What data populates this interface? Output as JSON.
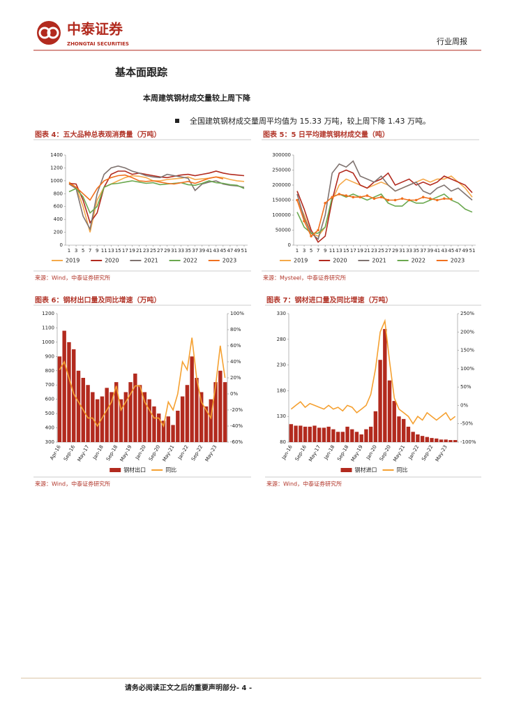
{
  "header": {
    "company": "中泰证券",
    "company_en": "ZHONGTAI SECURITIES",
    "report_type": "行业周报"
  },
  "section_title": "基本面跟踪",
  "subtitle": "本周建筑钢材成交量较上周下降",
  "bullet": "全国建筑钢材成交量周平均值为 15.33 万吨，较上周下降 1.43 万吨。",
  "chart_data": [
    {
      "type": "line",
      "title": "图表 4：五大品种总表观消费量（万吨）",
      "source": "来源：Wind，中泰证券研究所",
      "x": [
        1,
        3,
        5,
        7,
        9,
        11,
        13,
        15,
        17,
        19,
        21,
        23,
        25,
        27,
        29,
        31,
        33,
        35,
        37,
        39,
        41,
        43,
        45,
        47,
        49,
        51
      ],
      "xlim": [
        0,
        52
      ],
      "xticks": [
        1,
        3,
        5,
        7,
        9,
        11,
        13,
        15,
        17,
        19,
        21,
        23,
        25,
        27,
        29,
        31,
        33,
        35,
        37,
        39,
        41,
        43,
        45,
        47,
        49,
        51
      ],
      "ylim": [
        0,
        1400
      ],
      "yticks": [
        0,
        200,
        400,
        600,
        800,
        1000,
        1200,
        1400
      ],
      "grid": false,
      "legend": "bottom",
      "series": [
        {
          "name": "2019",
          "color": "#f5a94a",
          "values": [
            980,
            900,
            600,
            200,
            700,
            900,
            950,
            1000,
            1050,
            1080,
            1070,
            1050,
            1000,
            1000,
            1020,
            1030,
            1040,
            1060,
            1020,
            1030,
            1040,
            1060,
            1050,
            1020,
            1000,
            990
          ]
        },
        {
          "name": "2020",
          "color": "#b22a1e",
          "values": [
            960,
            950,
            700,
            350,
            500,
            900,
            1100,
            1150,
            1150,
            1100,
            1120,
            1100,
            1080,
            1060,
            1050,
            1070,
            1090,
            1100,
            1080,
            1100,
            1120,
            1150,
            1120,
            1100,
            1090,
            1080
          ]
        },
        {
          "name": "2021",
          "color": "#7f7370",
          "values": [
            950,
            880,
            450,
            250,
            800,
            1100,
            1200,
            1230,
            1200,
            1150,
            1120,
            1080,
            1060,
            1050,
            1100,
            1080,
            1060,
            1040,
            850,
            950,
            980,
            1000,
            950,
            930,
            920,
            900
          ]
        },
        {
          "name": "2022",
          "color": "#6aa84f",
          "values": [
            830,
            880,
            750,
            500,
            600,
            900,
            950,
            960,
            980,
            1000,
            980,
            960,
            970,
            940,
            950,
            960,
            970,
            940,
            930,
            960,
            1000,
            970,
            960,
            940,
            930,
            880
          ]
        },
        {
          "name": "2023",
          "color": "#f0701e",
          "values": [
            960,
            900,
            800,
            700,
            880,
            1000,
            1050,
            1080,
            1090,
            1050,
            1000,
            990,
            1000,
            980,
            960,
            950,
            970,
            990,
            960,
            1000,
            1040,
            1060,
            1030,
            null,
            null,
            null
          ]
        }
      ]
    },
    {
      "type": "line",
      "title": "图表 5：5 日平均建筑钢材成交量（吨）",
      "source": "来源：Mysteel，中泰证券研究所",
      "x": [
        1,
        3,
        5,
        7,
        9,
        11,
        13,
        15,
        17,
        19,
        21,
        23,
        25,
        27,
        29,
        31,
        33,
        35,
        37,
        39,
        41,
        43,
        45,
        47,
        49,
        51
      ],
      "xlim": [
        0,
        52
      ],
      "xticks": [
        1,
        3,
        5,
        7,
        9,
        11,
        13,
        15,
        17,
        19,
        21,
        23,
        25,
        27,
        29,
        31,
        33,
        35,
        37,
        39,
        41,
        43,
        45,
        47,
        49,
        51
      ],
      "ylim": [
        0,
        300000
      ],
      "yticks": [
        0,
        50000,
        100000,
        150000,
        200000,
        250000,
        300000
      ],
      "grid": false,
      "legend": "bottom",
      "series": [
        {
          "name": "2019",
          "color": "#f5a94a",
          "values": [
            150000,
            100000,
            40000,
            30000,
            60000,
            150000,
            200000,
            220000,
            210000,
            200000,
            190000,
            200000,
            210000,
            200000,
            180000,
            190000,
            200000,
            210000,
            220000,
            210000,
            220000,
            220000,
            230000,
            210000,
            190000,
            160000
          ]
        },
        {
          "name": "2020",
          "color": "#b22a1e",
          "values": [
            180000,
            120000,
            50000,
            10000,
            30000,
            150000,
            240000,
            250000,
            240000,
            200000,
            190000,
            210000,
            220000,
            240000,
            200000,
            210000,
            220000,
            200000,
            210000,
            200000,
            210000,
            230000,
            220000,
            210000,
            200000,
            175000
          ]
        },
        {
          "name": "2021",
          "color": "#7f7370",
          "values": [
            170000,
            90000,
            40000,
            20000,
            100000,
            240000,
            270000,
            260000,
            280000,
            230000,
            220000,
            210000,
            230000,
            200000,
            180000,
            190000,
            200000,
            210000,
            180000,
            170000,
            190000,
            200000,
            180000,
            190000,
            170000,
            150000
          ]
        },
        {
          "name": "2022",
          "color": "#6aa84f",
          "values": [
            110000,
            60000,
            40000,
            40000,
            60000,
            160000,
            170000,
            160000,
            170000,
            160000,
            150000,
            160000,
            170000,
            140000,
            130000,
            130000,
            150000,
            140000,
            140000,
            150000,
            160000,
            170000,
            150000,
            140000,
            120000,
            110000
          ]
        },
        {
          "name": "2023",
          "color": "#f0701e",
          "markers": true,
          "values": [
            150000,
            80000,
            30000,
            50000,
            140000,
            160000,
            170000,
            165000,
            160000,
            160000,
            165000,
            155000,
            160000,
            150000,
            150000,
            155000,
            150000,
            150000,
            160000,
            155000,
            150000,
            155000,
            153300,
            null,
            null,
            null
          ]
        }
      ]
    },
    {
      "type": "combo",
      "title": "图表 6：钢材出口量及同比增速（万吨）",
      "source": "来源：Wind，中泰证券研究所",
      "categories": [
        "Apr-16",
        null,
        null,
        "Sep-16",
        null,
        null,
        "May-17",
        null,
        null,
        "Jan-18",
        null,
        null,
        "Sep-18",
        null,
        null,
        "May-19",
        null,
        null,
        "Jan-20",
        null,
        null,
        "Sep-20",
        null,
        null,
        "May-21",
        null,
        null,
        "Jan-22",
        null,
        null,
        "Sep-22",
        null,
        null,
        "May-23",
        null,
        null
      ],
      "ylim": [
        300,
        1200
      ],
      "yticks": [
        300,
        400,
        500,
        600,
        700,
        800,
        900,
        1000,
        1100,
        1200
      ],
      "y2lim": [
        -60,
        100
      ],
      "y2ticks": [
        {
          "value": -60,
          "label": "-60%"
        },
        {
          "value": -40,
          "label": "-40%"
        },
        {
          "value": -20,
          "label": "-20%"
        },
        {
          "value": 0,
          "label": "0%"
        },
        {
          "value": 20,
          "label": "20%"
        },
        {
          "value": 40,
          "label": "40%"
        },
        {
          "value": 60,
          "label": "60%"
        },
        {
          "value": 80,
          "label": "80%"
        },
        {
          "value": 100,
          "label": "100%"
        }
      ],
      "legend": "bottom",
      "series": [
        {
          "name": "钢材出口",
          "kind": "bar",
          "color": "#b22a1e",
          "values": [
            900,
            1080,
            1000,
            950,
            800,
            750,
            700,
            650,
            600,
            620,
            680,
            650,
            720,
            600,
            650,
            720,
            780,
            700,
            650,
            600,
            550,
            500,
            450,
            480,
            420,
            520,
            620,
            700,
            900,
            750,
            650,
            550,
            600,
            720,
            800,
            720
          ]
        },
        {
          "name": "同比",
          "kind": "line",
          "axis": "y2",
          "color": "#f5a030",
          "values": [
            30,
            40,
            20,
            0,
            -10,
            -20,
            -30,
            -30,
            -40,
            -30,
            -20,
            -10,
            10,
            -20,
            -10,
            0,
            10,
            10,
            -10,
            -20,
            -30,
            -30,
            -40,
            -10,
            -20,
            0,
            40,
            30,
            70,
            20,
            -10,
            -20,
            -30,
            10,
            60,
            20
          ]
        }
      ]
    },
    {
      "type": "combo",
      "title": "图表 7：钢材进口量及同比增速（万吨）",
      "source": "来源：Wind，中泰证券研究所",
      "categories": [
        "Jan-16",
        null,
        null,
        "Sep-16",
        null,
        null,
        "May-17",
        null,
        null,
        "Jan-18",
        null,
        null,
        "Sep-18",
        null,
        null,
        "May-19",
        null,
        null,
        "Jan-20",
        null,
        null,
        "Sep-20",
        null,
        null,
        "May-21",
        null,
        null,
        "Jan-22",
        null,
        null,
        "Sep-22",
        null,
        null,
        "May-23",
        null,
        null
      ],
      "ylim": [
        80,
        330
      ],
      "yticks": [
        80,
        130,
        180,
        230,
        280,
        330
      ],
      "y2lim": [
        -100,
        250
      ],
      "y2ticks": [
        {
          "value": -100,
          "label": "-100%"
        },
        {
          "value": -50,
          "label": "-50%"
        },
        {
          "value": 0,
          "label": "0%"
        },
        {
          "value": 50,
          "label": "50%"
        },
        {
          "value": 100,
          "label": "100%"
        },
        {
          "value": 150,
          "label": "150%"
        },
        {
          "value": 200,
          "label": "200%"
        },
        {
          "value": 250,
          "label": "250%"
        }
      ],
      "legend": "bottom",
      "series": [
        {
          "name": "钢材进口",
          "kind": "bar",
          "color": "#b22a1e",
          "values": [
            115,
            112,
            112,
            110,
            110,
            112,
            108,
            108,
            110,
            105,
            100,
            100,
            110,
            105,
            100,
            95,
            105,
            110,
            140,
            240,
            300,
            200,
            160,
            130,
            125,
            110,
            100,
            95,
            92,
            90,
            88,
            87,
            85,
            85,
            84,
            84
          ]
        },
        {
          "name": "同比",
          "kind": "line",
          "axis": "y2",
          "color": "#f5a030",
          "values": [
            -10,
            0,
            10,
            -5,
            5,
            0,
            -5,
            -10,
            0,
            -10,
            -5,
            -15,
            0,
            -5,
            -20,
            -10,
            0,
            30,
            100,
            200,
            230,
            120,
            20,
            -10,
            -20,
            -30,
            -50,
            -30,
            -40,
            -20,
            -30,
            -40,
            -30,
            -20,
            -40,
            -30
          ]
        }
      ]
    }
  ],
  "footer": "请务必阅读正文之后的重要声明部分- 4 -"
}
